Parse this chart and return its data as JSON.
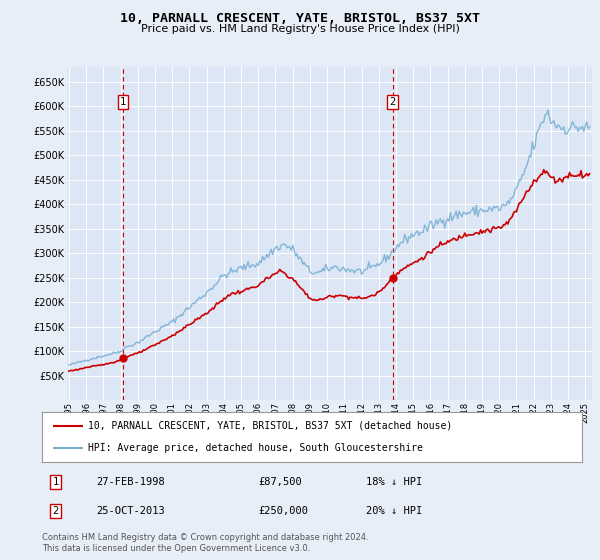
{
  "title": "10, PARNALL CRESCENT, YATE, BRISTOL, BS37 5XT",
  "subtitle": "Price paid vs. HM Land Registry's House Price Index (HPI)",
  "background_color": "#e8eef8",
  "plot_bg_color": "#dce6f5",
  "grid_color": "#ffffff",
  "hpi_color": "#7ab0d4",
  "price_color": "#cc0000",
  "dashed_color": "#cc0000",
  "legend_line1": "10, PARNALL CRESCENT, YATE, BRISTOL, BS37 5XT (detached house)",
  "legend_line2": "HPI: Average price, detached house, South Gloucestershire",
  "table_row1": [
    "1",
    "27-FEB-1998",
    "£87,500",
    "18% ↓ HPI"
  ],
  "table_row2": [
    "2",
    "25-OCT-2013",
    "£250,000",
    "20% ↓ HPI"
  ],
  "footnote": "Contains HM Land Registry data © Crown copyright and database right 2024.\nThis data is licensed under the Open Government Licence v3.0.",
  "ylim": [
    0,
    680000
  ],
  "xlim_start": 1994.9,
  "xlim_end": 2025.4,
  "t1_x": 1998.15,
  "t1_price": 87500,
  "t2_x": 2013.81,
  "t2_price": 250000,
  "xticks": [
    1995,
    1996,
    1997,
    1998,
    1999,
    2000,
    2001,
    2002,
    2003,
    2004,
    2005,
    2006,
    2007,
    2008,
    2009,
    2010,
    2011,
    2012,
    2013,
    2014,
    2015,
    2016,
    2017,
    2018,
    2019,
    2020,
    2021,
    2022,
    2023,
    2024,
    2025
  ],
  "yticks": [
    50000,
    100000,
    150000,
    200000,
    250000,
    300000,
    350000,
    400000,
    450000,
    500000,
    550000,
    600000,
    650000
  ]
}
